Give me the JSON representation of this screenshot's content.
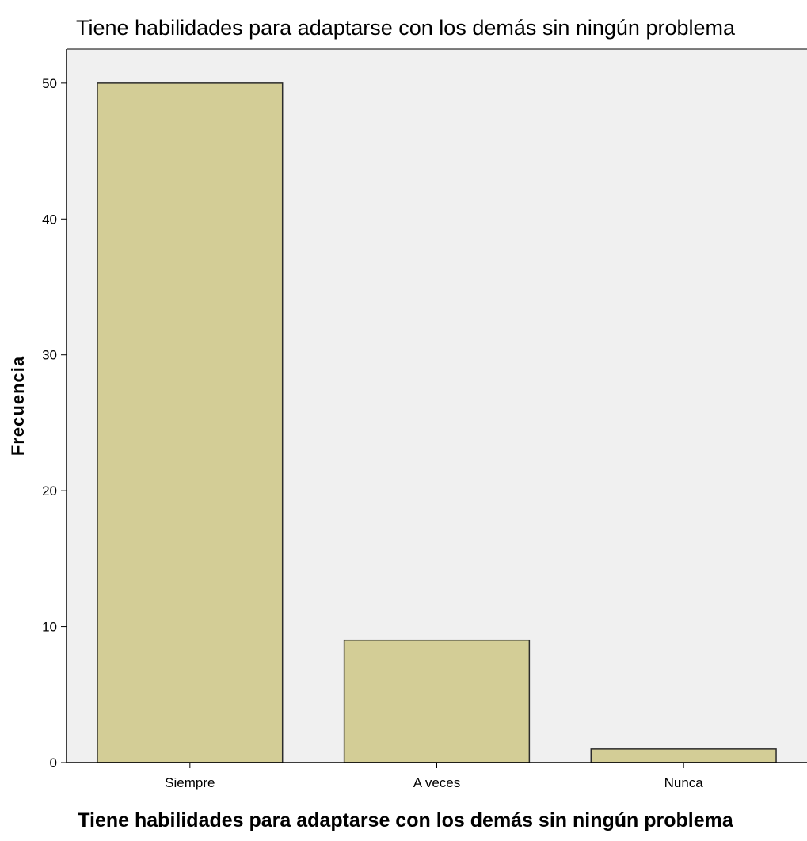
{
  "chart_data": {
    "type": "bar",
    "title": "Tiene habilidades para adaptarse con los demás sin ningún problema",
    "xlabel": "Tiene habilidades para adaptarse con los demás sin ningún problema",
    "ylabel": "Frecuencia",
    "categories": [
      "Siempre",
      "A veces",
      "Nunca"
    ],
    "values": [
      50,
      9,
      1
    ],
    "ylim": [
      0,
      52.5
    ],
    "yticks": [
      0,
      10,
      20,
      30,
      40,
      50
    ],
    "grid": false,
    "colors": {
      "bar_fill": "#d3cd96",
      "bar_stroke": "#2b2b2b",
      "plot_bg": "#f0f0f0",
      "axis": "#000000"
    }
  }
}
